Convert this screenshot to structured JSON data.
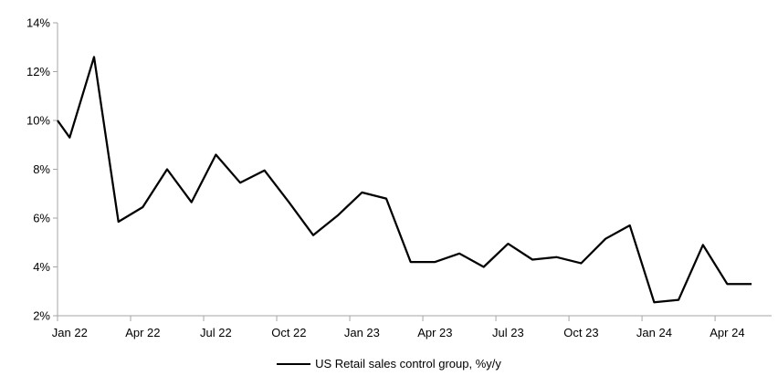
{
  "chart_data": {
    "type": "line",
    "title": "",
    "legend_label": "US Retail sales control group, %y/y",
    "legend_position": "bottom-center",
    "grid": false,
    "x": [
      "Jan 22",
      "Feb 22",
      "Mar 22",
      "Apr 22",
      "May 22",
      "Jun 22",
      "Jul 22",
      "Aug 22",
      "Sep 22",
      "Oct 22",
      "Nov 22",
      "Dec 22",
      "Jan 23",
      "Feb 23",
      "Mar 23",
      "Apr 23",
      "May 23",
      "Jun 23",
      "Jul 23",
      "Aug 23",
      "Sep 23",
      "Oct 23",
      "Nov 23",
      "Dec 23",
      "Jan 24",
      "Feb 24",
      "Mar 24",
      "Apr 24",
      "May 24"
    ],
    "series": [
      {
        "name": "US Retail sales control group, %y/y",
        "values": [
          9.3,
          12.6,
          5.85,
          6.45,
          8.0,
          6.65,
          8.6,
          7.45,
          7.95,
          6.65,
          5.3,
          6.1,
          7.05,
          6.8,
          4.2,
          4.2,
          4.55,
          4.0,
          4.95,
          4.3,
          4.4,
          4.15,
          5.15,
          5.7,
          2.55,
          2.65,
          4.9,
          3.3,
          3.3
        ]
      }
    ],
    "axis_entry_value": 10.0,
    "ylim": [
      2,
      14
    ],
    "y_ticks": [
      2,
      4,
      6,
      8,
      10,
      12,
      14
    ],
    "y_tick_labels": [
      "2%",
      "4%",
      "6%",
      "8%",
      "10%",
      "12%",
      "14%"
    ],
    "x_tick_labels": [
      "Jan 22",
      "Apr 22",
      "Jul 22",
      "Oct 22",
      "Jan 23",
      "Apr 23",
      "Jul 23",
      "Oct 23",
      "Jan 24",
      "Apr 24"
    ],
    "line_color": "#000000",
    "axis_color": "#A6A6A6",
    "text_color": "#000000"
  }
}
